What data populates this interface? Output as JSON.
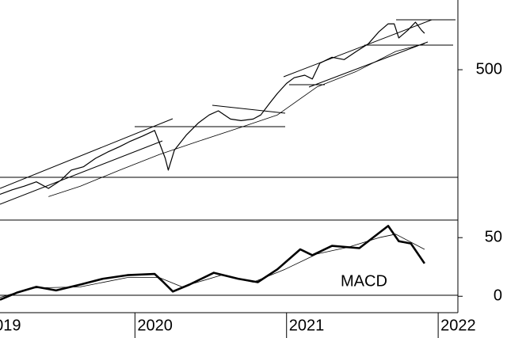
{
  "chart_data": [
    {
      "type": "line",
      "log_scale": true,
      "ylim": [
        242,
        700
      ],
      "yticks": [
        500
      ],
      "xlim": [
        2019.11,
        2022.13
      ],
      "series": [
        {
          "color": "#000000",
          "width": 1.2,
          "x": [
            2019.11,
            2019.19,
            2019.27,
            2019.35,
            2019.43,
            2019.51,
            2019.58,
            2019.66,
            2019.74,
            2019.82,
            2019.9,
            2019.97,
            2020.05,
            2020.13,
            2020.16,
            2020.2,
            2020.22,
            2020.26,
            2020.34,
            2020.42,
            2020.49,
            2020.55,
            2020.63,
            2020.7,
            2020.78,
            2020.83,
            2020.89,
            2020.94,
            2021.0,
            2021.05,
            2021.12,
            2021.17,
            2021.22,
            2021.3,
            2021.38,
            2021.46,
            2021.54,
            2021.61,
            2021.67,
            2021.71,
            2021.74,
            2021.8,
            2021.85,
            2021.89,
            2021.91
          ],
          "values": [
            274,
            280,
            285,
            291,
            282,
            293,
            308,
            313,
            326,
            336,
            345,
            354,
            363,
            373,
            352,
            326,
            308,
            339,
            365,
            387,
            402,
            410,
            394,
            391,
            394,
            402,
            426,
            446,
            468,
            481,
            487,
            478,
            516,
            531,
            525,
            546,
            567,
            601,
            624,
            624,
            583,
            605,
            629,
            605,
            596
          ]
        },
        {
          "color": "#000000",
          "width": 0.8,
          "x": [
            2019.43,
            2019.64,
            2019.9,
            2020.16,
            2020.42,
            2020.68,
            2020.94,
            2021.2,
            2021.46,
            2021.72,
            2021.91
          ],
          "values": [
            271,
            285,
            308,
            332,
            354,
            377,
            402,
            460,
            496,
            546,
            567
          ]
        }
      ]
    },
    {
      "type": "line",
      "ylim": [
        -14,
        65
      ],
      "yticks": [
        0,
        50
      ],
      "xlim": [
        2019.11,
        2022.13
      ],
      "xticks": [
        {
          "value": 2019,
          "label": "2019"
        },
        {
          "value": 2020,
          "label": "2020"
        },
        {
          "value": 2021,
          "label": "2021"
        },
        {
          "value": 2022,
          "label": "2022"
        }
      ],
      "annotation": "MACD",
      "series": [
        {
          "color": "#000000",
          "width": 2.6,
          "x": [
            2019.11,
            2019.22,
            2019.35,
            2019.48,
            2019.64,
            2019.79,
            2019.95,
            2020.13,
            2020.18,
            2020.25,
            2020.36,
            2020.52,
            2020.68,
            2020.81,
            2020.94,
            2021.09,
            2021.17,
            2021.3,
            2021.48,
            2021.67,
            2021.74,
            2021.82,
            2021.91
          ],
          "values": [
            -3,
            3,
            8,
            5,
            10,
            15,
            18,
            19,
            13,
            4,
            10,
            20,
            15,
            12,
            23,
            40,
            35,
            43,
            41,
            60,
            47,
            45,
            28
          ]
        },
        {
          "color": "#000000",
          "width": 0.8,
          "x": [
            2019.11,
            2019.32,
            2019.64,
            2019.95,
            2020.16,
            2020.31,
            2020.57,
            2020.78,
            2020.99,
            2021.2,
            2021.41,
            2021.61,
            2021.72,
            2021.91
          ],
          "values": [
            -1,
            7,
            8,
            16,
            16,
            8,
            18,
            12,
            23,
            36,
            42,
            50,
            53,
            40
          ]
        }
      ]
    }
  ]
}
